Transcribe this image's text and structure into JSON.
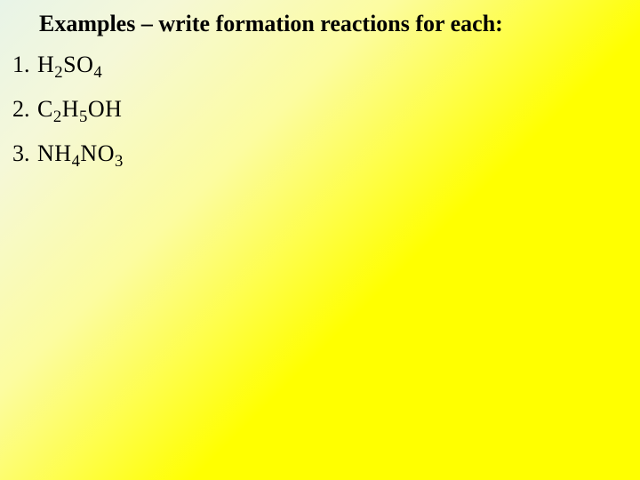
{
  "title": "Examples – write formation reactions for each:",
  "items": [
    {
      "num": "1.",
      "parts": [
        "H",
        "2",
        "SO",
        "4"
      ]
    },
    {
      "num": "2.",
      "parts": [
        "C",
        "2",
        "H",
        "5",
        "OH"
      ]
    },
    {
      "num": "3.",
      "parts": [
        "NH",
        "4",
        "NO",
        "3"
      ]
    }
  ],
  "style": {
    "title_fontsize": 26,
    "item_fontsize": 26,
    "font_family": "Times New Roman",
    "text_color": "#000000",
    "bg_gradient": [
      "#e8f4e8",
      "#f5f8d8",
      "#fcfca0",
      "#ffff00"
    ]
  }
}
